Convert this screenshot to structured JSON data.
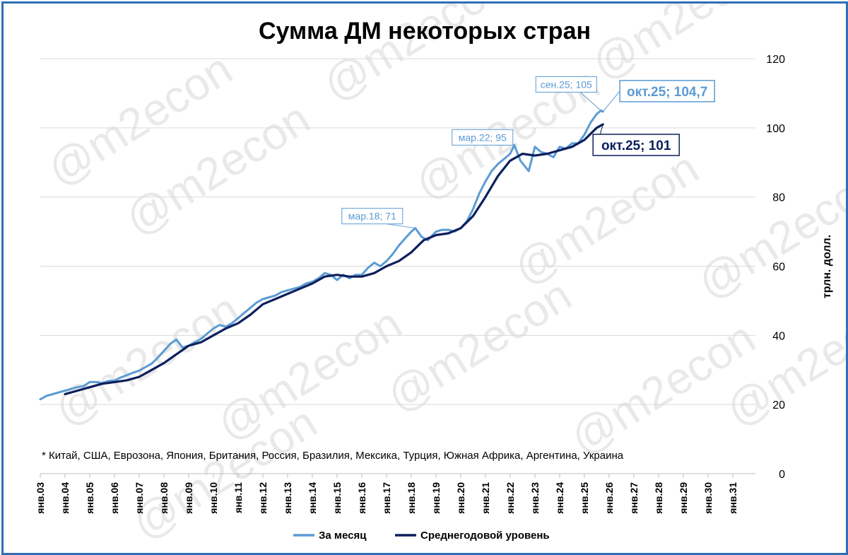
{
  "chart_data": {
    "type": "line",
    "title": "Сумма ДМ некоторых стран",
    "ylabel": "трлн. долл.",
    "ylim": [
      0,
      120
    ],
    "yticks": [
      "0",
      "20",
      "40",
      "60",
      "80",
      "100",
      "120"
    ],
    "y_axis_side": "right",
    "grid": true,
    "x_range": [
      "2003-01",
      "2031-12"
    ],
    "xticks": [
      "янв.03",
      "янв.04",
      "янв.05",
      "янв.06",
      "янв.07",
      "янв.08",
      "янв.09",
      "янв.10",
      "янв.11",
      "янв.12",
      "янв.13",
      "янв.14",
      "янв.15",
      "янв.16",
      "янв.17",
      "янв.18",
      "янв.19",
      "янв.20",
      "янв.21",
      "янв.22",
      "янв.23",
      "янв.24",
      "янв.25",
      "янв.26",
      "янв.27",
      "янв.28",
      "янв.29",
      "янв.30",
      "янв.31"
    ],
    "legend_position": "bottom",
    "series": [
      {
        "name": "За месяц",
        "color": "#5b9bd5",
        "points": [
          [
            "2003-01",
            21.5
          ],
          [
            "2003-04",
            22.5
          ],
          [
            "2003-07",
            23.0
          ],
          [
            "2003-10",
            23.5
          ],
          [
            "2004-01",
            24.0
          ],
          [
            "2004-04",
            24.5
          ],
          [
            "2004-07",
            25.0
          ],
          [
            "2004-10",
            25.3
          ],
          [
            "2005-01",
            26.5
          ],
          [
            "2005-04",
            26.5
          ],
          [
            "2005-07",
            26.2
          ],
          [
            "2005-10",
            26.8
          ],
          [
            "2006-01",
            26.9
          ],
          [
            "2006-04",
            27.8
          ],
          [
            "2006-07",
            28.5
          ],
          [
            "2006-10",
            29.2
          ],
          [
            "2007-01",
            29.8
          ],
          [
            "2007-04",
            30.8
          ],
          [
            "2007-07",
            31.8
          ],
          [
            "2007-10",
            33.5
          ],
          [
            "2008-01",
            35.5
          ],
          [
            "2008-04",
            37.5
          ],
          [
            "2008-07",
            38.8
          ],
          [
            "2008-10",
            36.5
          ],
          [
            "2009-01",
            37.0
          ],
          [
            "2009-04",
            38.0
          ],
          [
            "2009-07",
            39.0
          ],
          [
            "2009-10",
            40.5
          ],
          [
            "2010-01",
            42.0
          ],
          [
            "2010-04",
            43.0
          ],
          [
            "2010-07",
            42.5
          ],
          [
            "2010-10",
            43.5
          ],
          [
            "2011-01",
            45.0
          ],
          [
            "2011-04",
            46.5
          ],
          [
            "2011-07",
            48.0
          ],
          [
            "2011-10",
            49.5
          ],
          [
            "2012-01",
            50.5
          ],
          [
            "2012-04",
            51.0
          ],
          [
            "2012-07",
            51.5
          ],
          [
            "2012-10",
            52.5
          ],
          [
            "2013-01",
            53.0
          ],
          [
            "2013-04",
            53.5
          ],
          [
            "2013-07",
            54.0
          ],
          [
            "2013-10",
            55.0
          ],
          [
            "2014-01",
            55.5
          ],
          [
            "2014-04",
            56.5
          ],
          [
            "2014-07",
            58.0
          ],
          [
            "2014-10",
            57.5
          ],
          [
            "2015-01",
            56.0
          ],
          [
            "2015-04",
            57.5
          ],
          [
            "2015-07",
            56.5
          ],
          [
            "2015-10",
            57.5
          ],
          [
            "2016-01",
            57.5
          ],
          [
            "2016-04",
            59.5
          ],
          [
            "2016-07",
            61.0
          ],
          [
            "2016-10",
            60.0
          ],
          [
            "2017-01",
            61.5
          ],
          [
            "2017-04",
            63.5
          ],
          [
            "2017-07",
            66.0
          ],
          [
            "2017-10",
            68.0
          ],
          [
            "2018-01",
            70.0
          ],
          [
            "2018-03",
            71.0
          ],
          [
            "2018-06",
            68.5
          ],
          [
            "2018-09",
            67.5
          ],
          [
            "2019-01",
            70.0
          ],
          [
            "2019-04",
            70.5
          ],
          [
            "2019-07",
            70.5
          ],
          [
            "2019-10",
            70.0
          ],
          [
            "2020-01",
            71.0
          ],
          [
            "2020-04",
            73.0
          ],
          [
            "2020-07",
            76.5
          ],
          [
            "2020-10",
            81.0
          ],
          [
            "2021-01",
            84.5
          ],
          [
            "2021-04",
            87.5
          ],
          [
            "2021-07",
            89.5
          ],
          [
            "2021-10",
            91.0
          ],
          [
            "2022-01",
            92.5
          ],
          [
            "2022-03",
            95.0
          ],
          [
            "2022-06",
            90.5
          ],
          [
            "2022-10",
            87.5
          ],
          [
            "2023-01",
            94.5
          ],
          [
            "2023-04",
            93.0
          ],
          [
            "2023-07",
            92.5
          ],
          [
            "2023-10",
            91.5
          ],
          [
            "2024-01",
            94.5
          ],
          [
            "2024-04",
            94.0
          ],
          [
            "2024-07",
            95.5
          ],
          [
            "2024-10",
            95.5
          ],
          [
            "2025-01",
            98.0
          ],
          [
            "2025-04",
            101.5
          ],
          [
            "2025-07",
            104.0
          ],
          [
            "2025-09",
            105.0
          ],
          [
            "2025-10",
            104.7
          ]
        ]
      },
      {
        "name": "Среднегодовой уровень",
        "color": "#0d1f5c",
        "points": [
          [
            "2004-01",
            23.0
          ],
          [
            "2004-07",
            24.0
          ],
          [
            "2005-01",
            25.0
          ],
          [
            "2005-07",
            26.0
          ],
          [
            "2006-01",
            26.5
          ],
          [
            "2006-07",
            27.0
          ],
          [
            "2007-01",
            28.0
          ],
          [
            "2007-07",
            30.0
          ],
          [
            "2008-01",
            32.0
          ],
          [
            "2008-07",
            34.5
          ],
          [
            "2009-01",
            37.0
          ],
          [
            "2009-07",
            38.0
          ],
          [
            "2010-01",
            40.0
          ],
          [
            "2010-07",
            42.0
          ],
          [
            "2011-01",
            43.5
          ],
          [
            "2011-07",
            46.0
          ],
          [
            "2012-01",
            49.0
          ],
          [
            "2012-07",
            50.5
          ],
          [
            "2013-01",
            52.0
          ],
          [
            "2013-07",
            53.5
          ],
          [
            "2014-01",
            55.0
          ],
          [
            "2014-07",
            57.0
          ],
          [
            "2015-01",
            57.5
          ],
          [
            "2015-07",
            57.0
          ],
          [
            "2016-01",
            57.0
          ],
          [
            "2016-07",
            58.0
          ],
          [
            "2017-01",
            60.0
          ],
          [
            "2017-07",
            61.5
          ],
          [
            "2018-01",
            64.0
          ],
          [
            "2018-07",
            67.5
          ],
          [
            "2019-01",
            69.0
          ],
          [
            "2019-07",
            69.5
          ],
          [
            "2020-01",
            71.0
          ],
          [
            "2020-07",
            74.5
          ],
          [
            "2021-01",
            80.0
          ],
          [
            "2021-07",
            86.0
          ],
          [
            "2022-01",
            90.5
          ],
          [
            "2022-07",
            92.5
          ],
          [
            "2023-01",
            92.0
          ],
          [
            "2023-07",
            92.5
          ],
          [
            "2024-01",
            93.5
          ],
          [
            "2024-07",
            94.5
          ],
          [
            "2025-01",
            96.5
          ],
          [
            "2025-07",
            100.0
          ],
          [
            "2025-10",
            101.0
          ]
        ]
      }
    ],
    "annotations": [
      {
        "text": "мар.18; 71",
        "x": "2018-03",
        "y": 71,
        "style": "small"
      },
      {
        "text": "мар.22; 95",
        "x": "2022-03",
        "y": 95,
        "style": "small"
      },
      {
        "text": "сен.25; 105",
        "x": "2025-09",
        "y": 105,
        "style": "small"
      },
      {
        "text": "окт.25; 104,7",
        "x": "2025-10",
        "y": 104.7,
        "style": "big-light"
      },
      {
        "text": "окт.25; 101",
        "x": "2025-10",
        "y": 101,
        "style": "big-dark"
      }
    ],
    "footnote": "* Китай, США, Еврозона, Япония, Британия, Россия, Бразилия, Мексика, Турция, Южная Африка, Аргентина, Украина",
    "watermark": "@m2econ"
  }
}
